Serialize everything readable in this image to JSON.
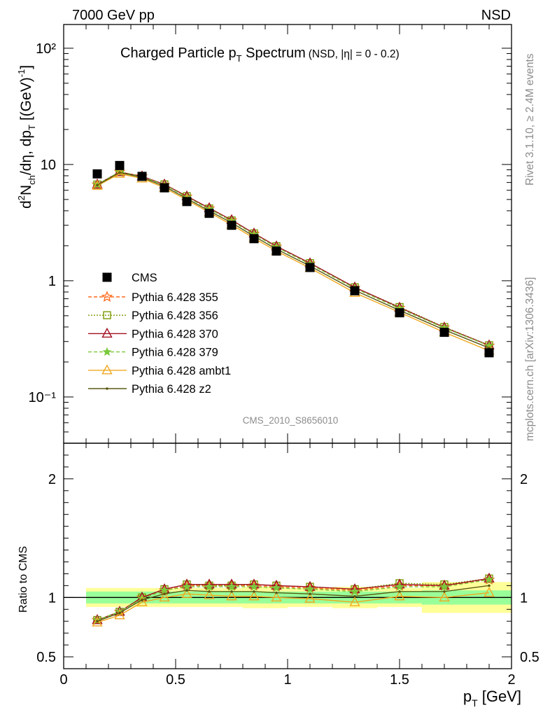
{
  "header": {
    "left": "7000 GeV pp",
    "right": "NSD"
  },
  "side_text": {
    "rivet": "Rivet 3.1.10, ≥ 2.4M events",
    "mcplots": "mcplots.cern.ch [arXiv:1306.3436]"
  },
  "chart_data": {
    "type": "line",
    "title": "Charged Particle p_T Spectrum",
    "title_main": "Charged Particle p",
    "title_sub": "T",
    "title_main2": " Spectrum",
    "title_note": "(NSD, |η| =   0 - 0.2)",
    "analysis_id": "CMS_2010_S8656010",
    "xlabel": "p_T [GeV]",
    "xlabel_main": "p",
    "xlabel_sub": "T",
    "xlabel_unit": " [GeV]",
    "ylabel": "d²N_ch/dη, dp_T [(GeV)⁻¹]",
    "ratio_ylabel": "Ratio to CMS",
    "xlim": [
      0,
      2
    ],
    "ylim": [
      0.04,
      160
    ],
    "ylog": true,
    "ratio_ylim": [
      0.4,
      2.3
    ],
    "x_ticks": [
      "0",
      "0.5",
      "1",
      "1.5",
      "2"
    ],
    "y_ticks": [
      "10⁻¹",
      "1",
      "10",
      "10²"
    ],
    "ratio_ticks": [
      "0.5",
      "1",
      "2"
    ],
    "legend_position": "middle-left",
    "x": [
      0.15,
      0.25,
      0.35,
      0.45,
      0.55,
      0.65,
      0.75,
      0.85,
      0.95,
      1.1,
      1.3,
      1.5,
      1.7,
      1.9
    ],
    "bin_edges": [
      0.1,
      0.2,
      0.3,
      0.4,
      0.5,
      0.6,
      0.7,
      0.8,
      0.9,
      1.0,
      1.2,
      1.4,
      1.6,
      1.8,
      2.0
    ],
    "data": {
      "name": "CMS",
      "values": [
        8.3,
        9.8,
        7.9,
        6.3,
        4.8,
        3.8,
        3.0,
        2.3,
        1.8,
        1.3,
        0.82,
        0.53,
        0.36,
        0.24
      ],
      "band_green": [
        0.05,
        0.05,
        0.05,
        0.05,
        0.05,
        0.05,
        0.05,
        0.05,
        0.05,
        0.05,
        0.05,
        0.05,
        0.06,
        0.06
      ],
      "band_yellow": [
        0.08,
        0.08,
        0.08,
        0.08,
        0.08,
        0.08,
        0.08,
        0.09,
        0.09,
        0.08,
        0.09,
        0.08,
        0.13,
        0.13
      ]
    },
    "series": [
      {
        "name": "Pythia 6.428 355",
        "color": "#ff6a1a",
        "dash": "5,3",
        "marker": "star-open",
        "ratio": [
          0.81,
          0.88,
          1.0,
          1.06,
          1.1,
          1.1,
          1.1,
          1.1,
          1.09,
          1.08,
          1.06,
          1.1,
          1.1,
          1.15
        ]
      },
      {
        "name": "Pythia 6.428 356",
        "color": "#7a9a00",
        "dash": "2,2",
        "marker": "square-open",
        "ratio": [
          0.81,
          0.88,
          1.0,
          1.07,
          1.11,
          1.1,
          1.1,
          1.11,
          1.1,
          1.09,
          1.07,
          1.12,
          1.11,
          1.16
        ]
      },
      {
        "name": "Pythia 6.428 370",
        "color": "#a01020",
        "dash": "",
        "marker": "triangle-open",
        "ratio": [
          0.81,
          0.88,
          1.0,
          1.07,
          1.11,
          1.11,
          1.11,
          1.11,
          1.1,
          1.09,
          1.07,
          1.11,
          1.1,
          1.16
        ]
      },
      {
        "name": "Pythia 6.428 379",
        "color": "#7ac83c",
        "dash": "5,3",
        "marker": "star-filled",
        "ratio": [
          0.81,
          0.88,
          0.99,
          1.06,
          1.09,
          1.09,
          1.09,
          1.09,
          1.08,
          1.07,
          1.05,
          1.09,
          1.09,
          1.15
        ]
      },
      {
        "name": "Pythia 6.428 ambt1",
        "color": "#f0a820",
        "dash": "",
        "marker": "triangle-open",
        "ratio": [
          0.79,
          0.85,
          0.96,
          1.0,
          1.03,
          1.02,
          1.01,
          1.01,
          1.0,
          0.99,
          0.96,
          1.01,
          1.0,
          1.04
        ]
      },
      {
        "name": "Pythia 6.428 z2",
        "color": "#5a5a14",
        "dash": "",
        "marker": "dot",
        "ratio": [
          0.8,
          0.87,
          0.98,
          1.03,
          1.06,
          1.05,
          1.05,
          1.05,
          1.04,
          1.03,
          1.01,
          1.05,
          1.05,
          1.1
        ]
      }
    ]
  }
}
